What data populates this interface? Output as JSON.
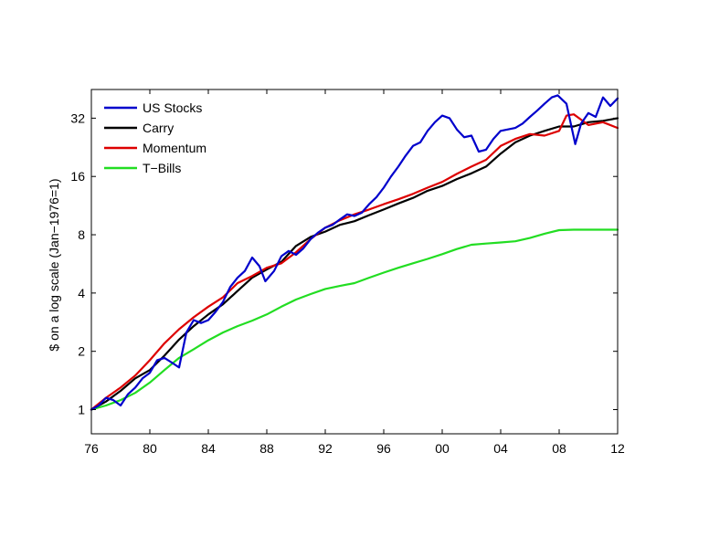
{
  "chart_data": {
    "type": "line",
    "title": "",
    "xlabel": "",
    "ylabel": "$ on a log scale (Jan−1976=1)",
    "yscale": "log2",
    "xlim": [
      1976,
      2012
    ],
    "ylim": [
      0.75,
      45
    ],
    "grid": false,
    "legend_position": "top-left",
    "x_ticks": [
      1976,
      1980,
      1984,
      1988,
      1992,
      1996,
      2000,
      2004,
      2008,
      2012
    ],
    "x_tick_labels": [
      "76",
      "80",
      "84",
      "88",
      "92",
      "96",
      "00",
      "04",
      "08",
      "12"
    ],
    "y_ticks": [
      1,
      2,
      4,
      8,
      16,
      32
    ],
    "y_tick_labels": [
      "1",
      "2",
      "4",
      "8",
      "16",
      "32"
    ],
    "series": [
      {
        "name": "US Stocks",
        "color": "#0000cc",
        "x": [
          1976,
          1976.5,
          1977,
          1977.5,
          1978,
          1978.5,
          1979,
          1979.5,
          1980,
          1980.5,
          1981,
          1981.5,
          1982,
          1982.5,
          1983,
          1983.5,
          1984,
          1984.5,
          1985,
          1985.5,
          1986,
          1986.5,
          1987,
          1987.5,
          1987.9,
          1988.5,
          1989,
          1989.5,
          1990,
          1990.5,
          1991,
          1991.5,
          1992,
          1992.5,
          1993,
          1993.5,
          1994,
          1994.5,
          1995,
          1995.5,
          1996,
          1996.5,
          1997,
          1997.5,
          1998,
          1998.5,
          1999,
          1999.5,
          2000,
          2000.5,
          2001,
          2001.5,
          2002,
          2002.5,
          2003,
          2003.5,
          2004,
          2004.5,
          2005,
          2005.5,
          2006,
          2006.5,
          2007,
          2007.5,
          2007.9,
          2008.5,
          2009.1,
          2009.5,
          2010,
          2010.5,
          2011,
          2011.5,
          2012
        ],
        "values": [
          1.0,
          1.05,
          1.15,
          1.12,
          1.05,
          1.2,
          1.3,
          1.45,
          1.55,
          1.8,
          1.85,
          1.75,
          1.65,
          2.5,
          2.9,
          2.8,
          2.9,
          3.2,
          3.6,
          4.3,
          4.8,
          5.2,
          6.1,
          5.5,
          4.6,
          5.2,
          6.2,
          6.6,
          6.3,
          6.8,
          7.6,
          8.2,
          8.7,
          9.0,
          9.6,
          10.2,
          10.0,
          10.4,
          11.5,
          12.5,
          14.0,
          16.0,
          18.0,
          20.5,
          23.0,
          24.0,
          27.5,
          30.5,
          33.0,
          32.0,
          28.0,
          25.5,
          26.0,
          21.5,
          22.0,
          25.0,
          27.5,
          28.0,
          28.5,
          30.0,
          32.5,
          35.0,
          38.0,
          41.0,
          42.0,
          38.0,
          23.5,
          30.0,
          34.0,
          32.5,
          41.0,
          37.0,
          40.5
        ]
      },
      {
        "name": "Carry",
        "color": "#000000",
        "x": [
          1976,
          1977,
          1978,
          1979,
          1980,
          1981,
          1982,
          1983,
          1984,
          1985,
          1986,
          1987,
          1988,
          1989,
          1990,
          1991,
          1992,
          1993,
          1994,
          1995,
          1996,
          1997,
          1998,
          1999,
          2000,
          2001,
          2002,
          2003,
          2004,
          2005,
          2006,
          2007,
          2008,
          2009,
          2010,
          2011,
          2012
        ],
        "values": [
          1.0,
          1.1,
          1.25,
          1.45,
          1.6,
          1.9,
          2.3,
          2.7,
          3.1,
          3.5,
          4.1,
          4.8,
          5.3,
          5.8,
          7.0,
          7.8,
          8.3,
          9.0,
          9.4,
          10.1,
          10.8,
          11.6,
          12.4,
          13.5,
          14.3,
          15.5,
          16.6,
          18.0,
          21.0,
          24.0,
          26.0,
          27.5,
          29.0,
          29.0,
          30.5,
          31.0,
          32.0
        ]
      },
      {
        "name": "Momentum",
        "color": "#dd0000",
        "x": [
          1976,
          1977,
          1978,
          1979,
          1980,
          1981,
          1982,
          1983,
          1984,
          1985,
          1986,
          1987,
          1988,
          1989,
          1990,
          1991,
          1992,
          1993,
          1994,
          1995,
          1996,
          1997,
          1998,
          1999,
          2000,
          2001,
          2002,
          2003,
          2004,
          2005,
          2006,
          2007,
          2008,
          2008.5,
          2009,
          2010,
          2011,
          2012
        ],
        "values": [
          1.0,
          1.15,
          1.3,
          1.5,
          1.8,
          2.2,
          2.6,
          3.0,
          3.4,
          3.8,
          4.5,
          4.9,
          5.4,
          5.7,
          6.5,
          7.6,
          8.7,
          9.5,
          10.2,
          10.8,
          11.5,
          12.2,
          13.0,
          14.0,
          15.0,
          16.5,
          18.0,
          19.5,
          23.0,
          25.0,
          26.5,
          26.0,
          27.5,
          33.0,
          33.5,
          29.5,
          30.5,
          28.5
        ]
      },
      {
        "name": "T−Bills",
        "color": "#22dd22",
        "x": [
          1976,
          1977,
          1978,
          1979,
          1980,
          1981,
          1982,
          1983,
          1984,
          1985,
          1986,
          1987,
          1988,
          1989,
          1990,
          1991,
          1992,
          1993,
          1994,
          1995,
          1996,
          1997,
          1998,
          1999,
          2000,
          2001,
          2002,
          2003,
          2004,
          2005,
          2006,
          2007,
          2008,
          2009,
          2010,
          2011,
          2012
        ],
        "values": [
          1.0,
          1.05,
          1.12,
          1.22,
          1.38,
          1.6,
          1.85,
          2.05,
          2.28,
          2.5,
          2.7,
          2.88,
          3.1,
          3.4,
          3.7,
          3.95,
          4.2,
          4.35,
          4.5,
          4.8,
          5.1,
          5.4,
          5.7,
          6.0,
          6.35,
          6.75,
          7.1,
          7.2,
          7.3,
          7.4,
          7.7,
          8.1,
          8.45,
          8.5,
          8.5,
          8.5,
          8.5
        ]
      }
    ]
  }
}
